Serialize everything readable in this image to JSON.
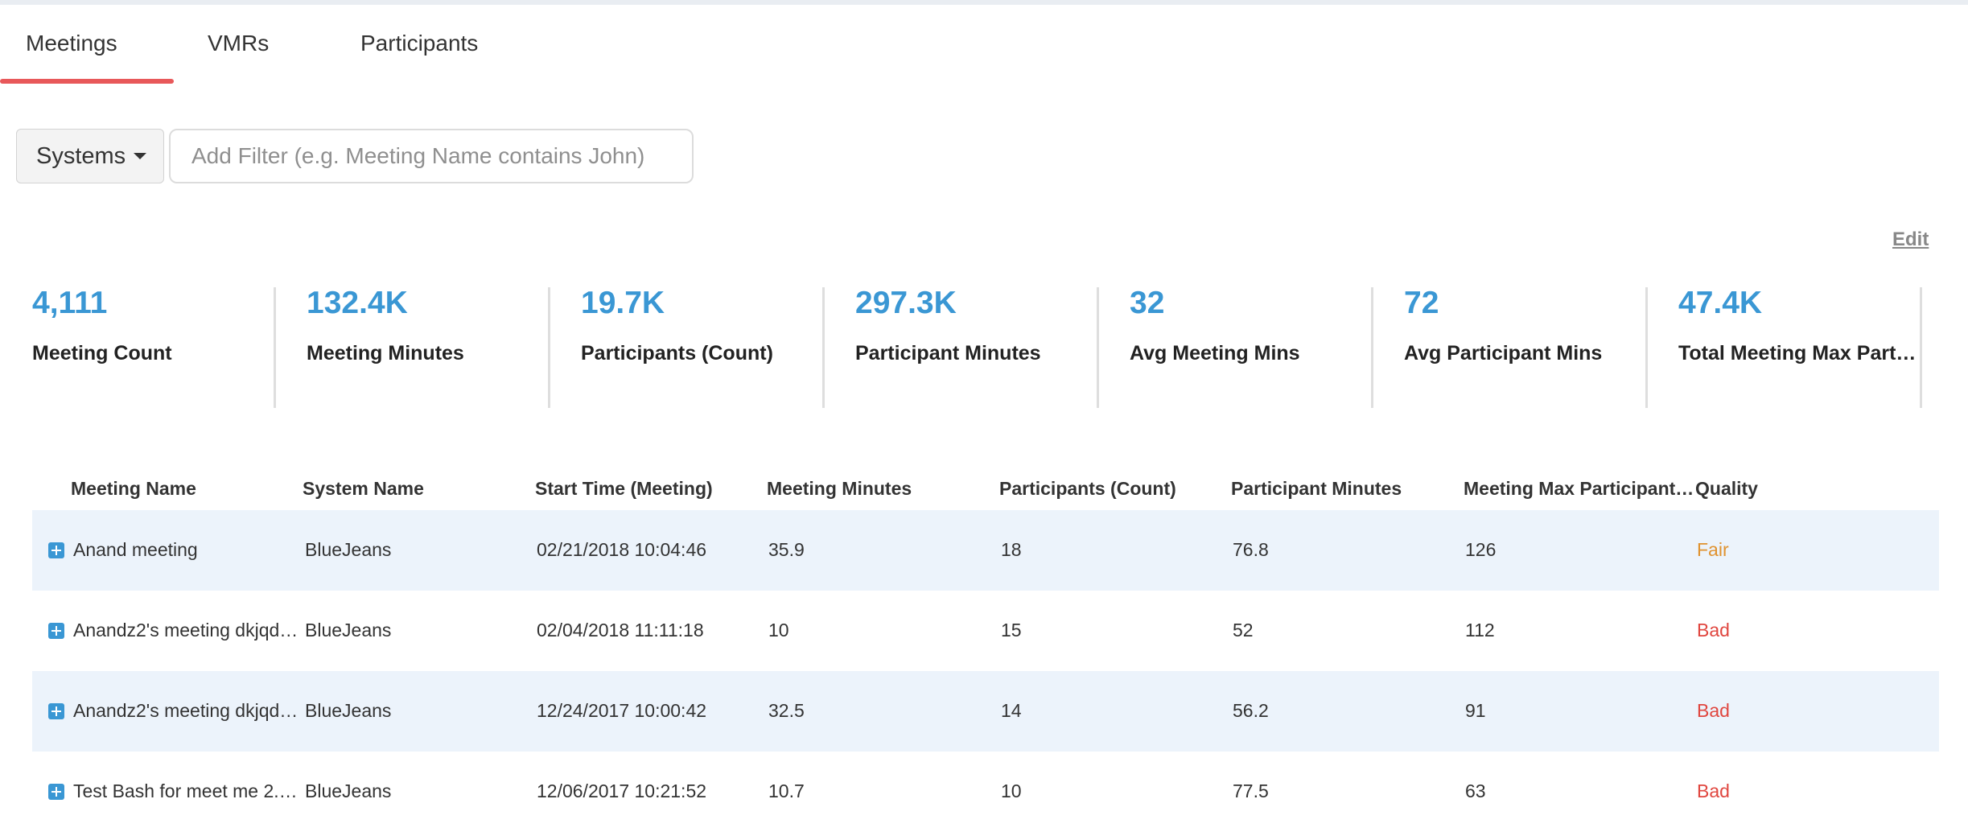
{
  "tabs": [
    {
      "label": "Meetings",
      "active": true
    },
    {
      "label": "VMRs",
      "active": false
    },
    {
      "label": "Participants",
      "active": false
    }
  ],
  "filter": {
    "systems_label": "Systems",
    "placeholder": "Add Filter (e.g. Meeting Name contains John)"
  },
  "edit_label": "Edit",
  "kpis": [
    {
      "value": "4,111",
      "label": "Meeting Count"
    },
    {
      "value": "132.4K",
      "label": "Meeting Minutes"
    },
    {
      "value": "19.7K",
      "label": "Participants (Count)"
    },
    {
      "value": "297.3K",
      "label": "Participant Minutes"
    },
    {
      "value": "32",
      "label": "Avg Meeting Mins"
    },
    {
      "value": "72",
      "label": "Avg Participant Mins"
    },
    {
      "value": "47.4K",
      "label": "Total Meeting Max Part…"
    }
  ],
  "table": {
    "columns": [
      "Meeting Name",
      "System Name",
      "Start Time (Meeting)",
      "Meeting Minutes",
      "Participants (Count)",
      "Participant Minutes",
      "Meeting Max Participant…",
      "Quality"
    ],
    "rows": [
      {
        "name": "Anand meeting",
        "system": "BlueJeans",
        "start": "02/21/2018 10:04:46",
        "minutes": "35.9",
        "participants": "18",
        "participant_minutes": "76.8",
        "max_participants": "126",
        "quality": "Fair"
      },
      {
        "name": "Anandz2's meeting dkjqd…",
        "system": "BlueJeans",
        "start": "02/04/2018 11:11:18",
        "minutes": "10",
        "participants": "15",
        "participant_minutes": "52",
        "max_participants": "112",
        "quality": "Bad"
      },
      {
        "name": "Anandz2's meeting dkjqd…",
        "system": "BlueJeans",
        "start": "12/24/2017 10:00:42",
        "minutes": "32.5",
        "participants": "14",
        "participant_minutes": "56.2",
        "max_participants": "91",
        "quality": "Bad"
      },
      {
        "name": "Test Bash for meet me 2.…",
        "system": "BlueJeans",
        "start": "12/06/2017 10:21:52",
        "minutes": "10.7",
        "participants": "10",
        "participant_minutes": "77.5",
        "max_participants": "63",
        "quality": "Bad"
      }
    ]
  },
  "colors": {
    "accent": "#3a97d4",
    "tab_underline": "#e8585a",
    "quality_fair": "#e0922f",
    "quality_bad": "#e0463f",
    "row_alt": "#ecf3fb"
  }
}
